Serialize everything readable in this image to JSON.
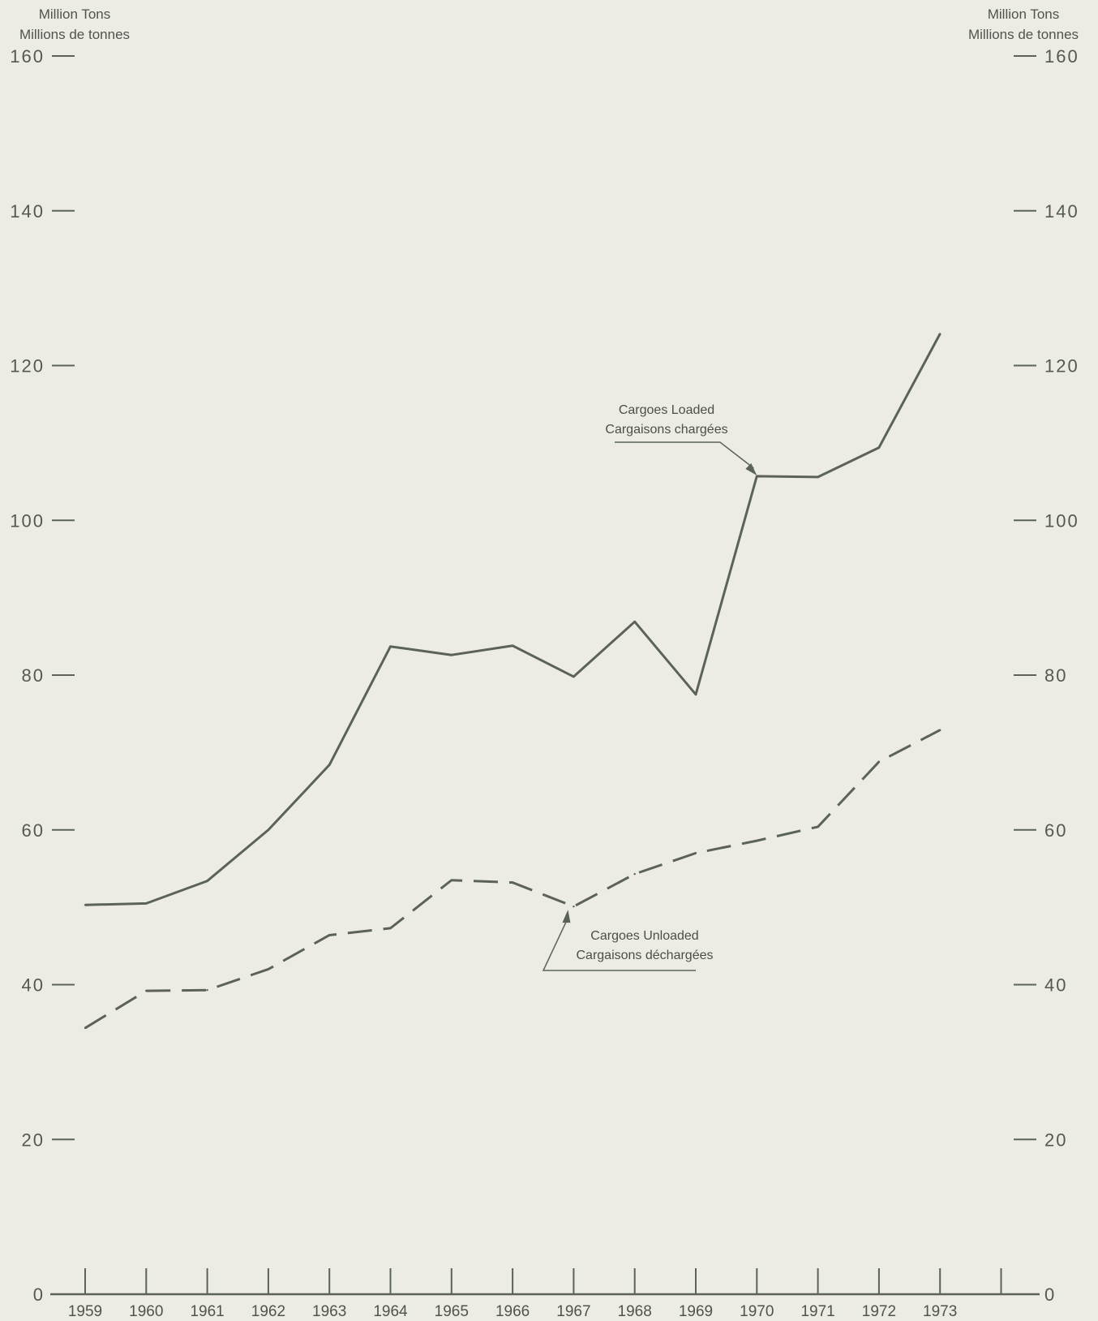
{
  "chart_data": {
    "type": "line",
    "y_unit_left": [
      "Million Tons",
      "Millions de tonnes"
    ],
    "y_unit_right": [
      "Million Tons",
      "Millions de tonnes"
    ],
    "ylim": [
      0,
      160
    ],
    "y_ticks": [
      "0",
      "20",
      "40",
      "60",
      "80",
      "100",
      "120",
      "140",
      "160"
    ],
    "x": [
      "1959",
      "1960",
      "1961",
      "1962",
      "1963",
      "1964",
      "1965",
      "1966",
      "1967",
      "1968",
      "1969",
      "1970",
      "1971",
      "1972",
      "1973"
    ],
    "grid": false,
    "series": [
      {
        "name": "Cargoes Loaded / Cargaisons chargées",
        "label_lines": [
          "Cargoes Loaded",
          "Cargaisons chargées"
        ],
        "style": "solid",
        "color": "#5a6356",
        "values": [
          50.3,
          50.5,
          53.4,
          60.0,
          68.4,
          83.7,
          82.6,
          83.8,
          79.8,
          86.9,
          77.5,
          105.7,
          105.6,
          109.4,
          124.1
        ]
      },
      {
        "name": "Cargoes Unloaded / Cargaisons déchargées",
        "label_lines": [
          "Cargoes Unloaded",
          "Cargaisons déchargées"
        ],
        "style": "dashed",
        "color": "#5a6356",
        "values": [
          34.4,
          39.2,
          39.3,
          42.0,
          46.4,
          47.3,
          53.5,
          53.2,
          50.1,
          54.3,
          57.0,
          58.6,
          60.4,
          68.8,
          72.9
        ]
      }
    ]
  }
}
